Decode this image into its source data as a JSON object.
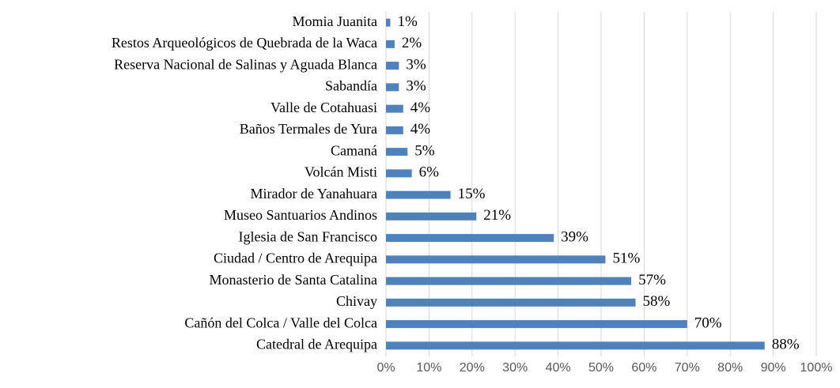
{
  "chart_data": {
    "type": "barh",
    "categories": [
      "Momia Juanita",
      "Restos Arqueológicos de Quebrada de la Waca",
      "Reserva Nacional de Salinas y Aguada Blanca",
      "Sabandía",
      "Valle de Cotahuasi",
      "Baños Termales de Yura",
      "Camaná",
      "Volcán Misti",
      "Mirador de Yanahuara",
      "Museo Santuarios Andinos",
      "Iglesia de San Francisco",
      "Ciudad / Centro de Arequipa",
      "Monasterio de Santa Catalina",
      "Chivay",
      "Cañón del Colca / Valle del Colca",
      "Catedral de Arequipa"
    ],
    "values": [
      1,
      2,
      3,
      3,
      4,
      4,
      5,
      6,
      15,
      21,
      39,
      51,
      57,
      58,
      70,
      88
    ],
    "value_labels": [
      "1%",
      "2%",
      "3%",
      "3%",
      "4%",
      "4%",
      "5%",
      "6%",
      "15%",
      "21%",
      "39%",
      "51%",
      "57%",
      "58%",
      "70%",
      "88%"
    ],
    "color": "#4f81bd",
    "xlim": [
      0,
      100
    ],
    "xticks": [
      {
        "value": 0,
        "label": "0%"
      },
      {
        "value": 10,
        "label": "10%"
      },
      {
        "value": 20,
        "label": "20%"
      },
      {
        "value": 30,
        "label": "30%"
      },
      {
        "value": 40,
        "label": "40%"
      },
      {
        "value": 50,
        "label": "50%"
      },
      {
        "value": 60,
        "label": "60%"
      },
      {
        "value": 70,
        "label": "70%"
      },
      {
        "value": 80,
        "label": "80%"
      },
      {
        "value": 90,
        "label": "90%"
      },
      {
        "value": 100,
        "label": "100%"
      }
    ],
    "grid": true
  }
}
